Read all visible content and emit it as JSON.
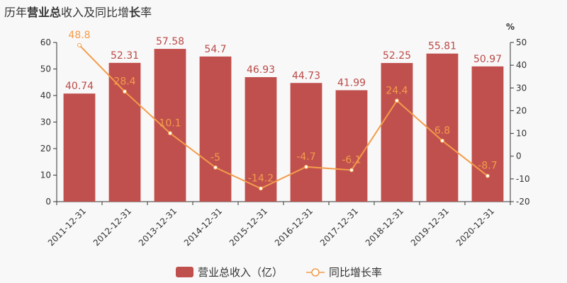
{
  "title_parts": [
    {
      "text": "历年",
      "bold": false
    },
    {
      "text": "营业总",
      "bold": true
    },
    {
      "text": "收入及同比增",
      "bold": false
    },
    {
      "text": "长",
      "bold": true
    },
    {
      "text": "率",
      "bold": false
    }
  ],
  "chart_data": {
    "type": "bar",
    "categories": [
      "2011-12-31",
      "2012-12-31",
      "2013-12-31",
      "2014-12-31",
      "2015-12-31",
      "2016-12-31",
      "2017-12-31",
      "2018-12-31",
      "2019-12-31",
      "2020-12-31"
    ],
    "series": [
      {
        "name": "营业总收入（亿）",
        "type": "bar",
        "axis": "left",
        "values": [
          40.74,
          52.31,
          57.58,
          54.7,
          46.93,
          44.73,
          41.99,
          52.25,
          55.81,
          50.97
        ],
        "color": "#c0504d"
      },
      {
        "name": "同比增长率",
        "type": "line",
        "axis": "right",
        "values": [
          48.8,
          28.4,
          10.1,
          -5,
          -14.2,
          -4.7,
          -6.1,
          24.4,
          6.8,
          -8.7
        ],
        "color": "#f39c4b"
      }
    ],
    "y_left": {
      "min": 0,
      "max": 60,
      "ticks": [
        0,
        10,
        20,
        30,
        40,
        50,
        60
      ]
    },
    "y_right": {
      "min": -20,
      "max": 50,
      "ticks": [
        -20,
        -10,
        0,
        10,
        20,
        30,
        40,
        50
      ],
      "unit": "%"
    },
    "legend_position": "bottom-center",
    "grid": false
  }
}
